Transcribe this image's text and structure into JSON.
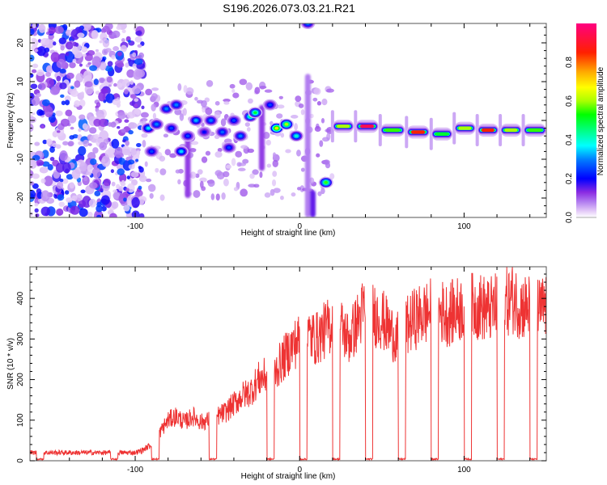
{
  "chart_data": [
    {
      "type": "heatmap",
      "title": "S196.2026.073.03.21.R21",
      "xlabel": "Height of straight line (km)",
      "ylabel": "Frequency (Hz)",
      "xlim": [
        -164,
        150
      ],
      "ylim": [
        -25,
        25
      ],
      "x_ticks": [
        -100,
        0,
        100
      ],
      "y_ticks": [
        -20,
        -10,
        0,
        10,
        20
      ],
      "grid": false,
      "colorbar": {
        "label": "Normalized spectral amplitude",
        "range": [
          0,
          1
        ],
        "ticks": [
          "0.0",
          "0.2",
          "0.4",
          "0.6",
          "0.8"
        ],
        "colormap": [
          "#ffffff",
          "#e6cff8",
          "#b27ef0",
          "#8a2be2",
          "#5000ff",
          "#0000ff",
          "#0080ff",
          "#00ffff",
          "#00ff80",
          "#00ff00",
          "#aaff00",
          "#ffff00",
          "#ffaa00",
          "#ff3000",
          "#ff0080"
        ]
      },
      "noise_region": {
        "x_range": [
          -164,
          -95
        ],
        "amplitude": 0.25
      },
      "features": [
        {
          "kind": "blob",
          "x": -92,
          "y": -2,
          "amp": 0.35
        },
        {
          "kind": "blob",
          "x": -87,
          "y": -1,
          "amp": 0.3
        },
        {
          "kind": "blob",
          "x": -90,
          "y": -8,
          "amp": 0.25
        },
        {
          "kind": "blob",
          "x": -81,
          "y": 3,
          "amp": 0.3
        },
        {
          "kind": "blob",
          "x": -78,
          "y": -2,
          "amp": 0.25
        },
        {
          "kind": "blob",
          "x": -75,
          "y": 4,
          "amp": 0.3
        },
        {
          "kind": "blob",
          "x": -72,
          "y": -8,
          "amp": 0.35
        },
        {
          "kind": "blob",
          "x": -68,
          "y": -4,
          "amp": 0.25
        },
        {
          "kind": "blob",
          "x": -63,
          "y": 0,
          "amp": 0.33
        },
        {
          "kind": "blob",
          "x": -58,
          "y": -3,
          "amp": 0.2
        },
        {
          "kind": "blob",
          "x": -54,
          "y": 0,
          "amp": 0.3
        },
        {
          "kind": "blob",
          "x": -47,
          "y": -3,
          "amp": 0.28
        },
        {
          "kind": "blob",
          "x": -43,
          "y": -7,
          "amp": 0.25
        },
        {
          "kind": "blob",
          "x": -40,
          "y": 0,
          "amp": 0.25
        },
        {
          "kind": "blob",
          "x": -36,
          "y": -4,
          "amp": 0.3
        },
        {
          "kind": "blob",
          "x": -30,
          "y": 1,
          "amp": 0.45
        },
        {
          "kind": "blob",
          "x": -27,
          "y": 2,
          "amp": 0.5
        },
        {
          "kind": "blob",
          "x": -18,
          "y": 4,
          "amp": 0.25
        },
        {
          "kind": "blob",
          "x": -14,
          "y": -2,
          "amp": 0.7
        },
        {
          "kind": "blob",
          "x": -8,
          "y": -1,
          "amp": 0.6
        },
        {
          "kind": "blob",
          "x": -2,
          "y": -4,
          "amp": 0.4
        },
        {
          "kind": "blob",
          "x": 16,
          "y": -16,
          "amp": 0.55
        },
        {
          "kind": "blob",
          "x": 5,
          "y": 25,
          "amp": 0.3
        },
        {
          "kind": "streak",
          "x": -68,
          "y0": -20,
          "y1": -3,
          "amp": 0.12
        },
        {
          "kind": "streak",
          "x": -23,
          "y0": -13,
          "y1": 4,
          "amp": 0.12
        },
        {
          "kind": "streak",
          "x": 5,
          "y0": -25,
          "y1": 12,
          "amp": 0.08
        },
        {
          "kind": "streak",
          "x": 8,
          "y0": -25,
          "y1": -18,
          "amp": 0.15
        }
      ],
      "carrier_segments": [
        {
          "x0": 20,
          "x1": 33,
          "y": -1.5,
          "amp": 0.6
        },
        {
          "x0": 34,
          "x1": 48,
          "y": -1.5,
          "amp": 0.95
        },
        {
          "x0": 49,
          "x1": 64,
          "y": -2.5,
          "amp": 0.55
        },
        {
          "x0": 65,
          "x1": 79,
          "y": -3.0,
          "amp": 0.85
        },
        {
          "x0": 80,
          "x1": 93,
          "y": -3.5,
          "amp": 0.5
        },
        {
          "x0": 94,
          "x1": 107,
          "y": -2.0,
          "amp": 0.6
        },
        {
          "x0": 108,
          "x1": 121,
          "y": -2.5,
          "amp": 0.85
        },
        {
          "x0": 122,
          "x1": 135,
          "y": -2.5,
          "amp": 0.6
        },
        {
          "x0": 136,
          "x1": 150,
          "y": -2.5,
          "amp": 0.55
        }
      ]
    },
    {
      "type": "line",
      "title": "",
      "xlabel": "Height of straight line (km)",
      "ylabel": "SNR (10 * v/v)",
      "xlim": [
        -164,
        150
      ],
      "ylim": [
        0,
        478
      ],
      "x_ticks": [
        -100,
        0,
        100
      ],
      "y_ticks": [
        0,
        100,
        200,
        300,
        400
      ],
      "grid": false,
      "line_color": "#ee3333",
      "envelope": {
        "x": [
          -164,
          -100,
          -96,
          -90,
          -85,
          -80,
          -75,
          -70,
          -65,
          -60,
          -55,
          -50,
          -45,
          -40,
          -35,
          -30,
          -25,
          -20,
          -15,
          -10,
          -5,
          0,
          5,
          10,
          15,
          20,
          25,
          30,
          35,
          40,
          45,
          50,
          55,
          60,
          65,
          70,
          75,
          80,
          85,
          90,
          95,
          100,
          105,
          110,
          115,
          120,
          125,
          130,
          135,
          140,
          145,
          150
        ],
        "y": [
          20,
          20,
          25,
          40,
          70,
          100,
          110,
          95,
          110,
          95,
          100,
          110,
          120,
          140,
          160,
          170,
          200,
          210,
          220,
          250,
          280,
          300,
          310,
          300,
          320,
          340,
          330,
          300,
          340,
          380,
          360,
          350,
          320,
          300,
          330,
          350,
          360,
          370,
          370,
          360,
          370,
          380,
          380,
          380,
          370,
          380,
          390,
          400,
          380,
          380,
          370,
          380
        ]
      },
      "dropouts_x": [
        -160,
        -115,
        -90,
        -55,
        -20,
        0,
        20,
        40,
        60,
        80,
        100,
        120,
        140
      ]
    }
  ]
}
